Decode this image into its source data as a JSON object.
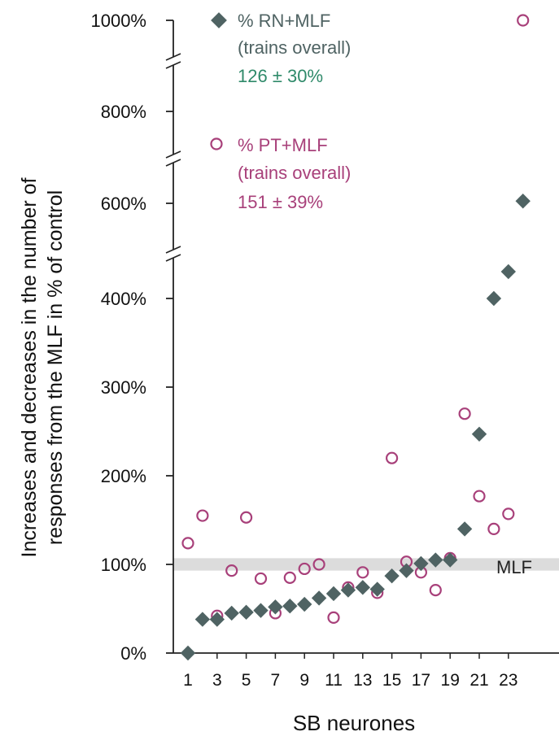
{
  "chart_data": {
    "type": "scatter",
    "xlabel": "SB neurones",
    "ylabel_lines": [
      "Increases and decreases in the number of",
      "responses from the MLF in % of control"
    ],
    "x_tick_labels": [
      "1",
      "3",
      "5",
      "7",
      "9",
      "11",
      "13",
      "15",
      "17",
      "19",
      "21",
      "23"
    ],
    "x_ticks": [
      1,
      3,
      5,
      7,
      9,
      11,
      13,
      15,
      17,
      19,
      21,
      23
    ],
    "xlim": [
      0.5,
      24.5
    ],
    "y_tick_labels": [
      "0%",
      "100%",
      "200%",
      "300%",
      "400%",
      "600%",
      "800%",
      "1000%"
    ],
    "y_ticks": [
      0,
      100,
      200,
      300,
      400,
      600,
      800,
      1000
    ],
    "y_axis_breaks": [
      450,
      700,
      900
    ],
    "ylim": [
      0,
      1000
    ],
    "reference_band": {
      "label": "MLF",
      "from": 93,
      "to": 107,
      "color": "#dcdcdc"
    },
    "series": [
      {
        "name": "% RN+MLF",
        "note": "(trains overall)",
        "stat": "126 ± 30%",
        "marker": "diamond",
        "color": "#4f6363",
        "stat_color": "#2f8a6a",
        "x": [
          1,
          2,
          3,
          4,
          5,
          6,
          7,
          8,
          9,
          10,
          11,
          12,
          13,
          14,
          15,
          16,
          17,
          18,
          19,
          20,
          21,
          22,
          23,
          24
        ],
        "y": [
          0,
          38,
          38,
          45,
          46,
          48,
          52,
          53,
          55,
          62,
          67,
          71,
          74,
          72,
          87,
          93,
          101,
          105,
          105,
          140,
          247,
          400,
          430,
          605
        ]
      },
      {
        "name": "% PT+MLF",
        "note": "(trains overall)",
        "stat": "151 ± 39%",
        "marker": "open-circle",
        "color": "#a8407a",
        "stat_color": "#a8407a",
        "x": [
          1,
          2,
          3,
          4,
          5,
          6,
          7,
          8,
          9,
          10,
          11,
          12,
          13,
          14,
          15,
          16,
          17,
          18,
          19,
          20,
          21,
          22,
          23,
          24
        ],
        "y": [
          124,
          155,
          42,
          93,
          153,
          84,
          45,
          85,
          95,
          100,
          40,
          74,
          91,
          68,
          220,
          103,
          91,
          71,
          107,
          270,
          177,
          140,
          157,
          1000
        ]
      }
    ]
  }
}
